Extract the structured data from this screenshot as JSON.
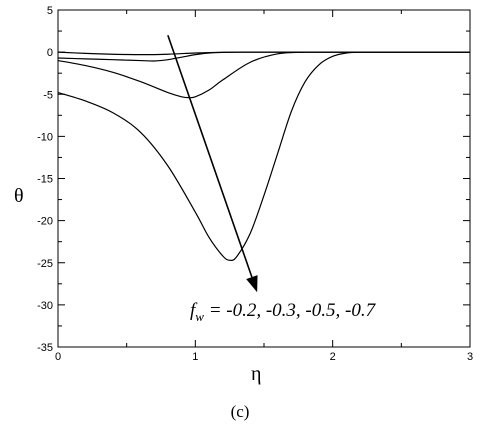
{
  "chart_data": {
    "type": "line",
    "title": "",
    "xlabel": "η",
    "ylabel": "θ",
    "xlim": [
      0,
      3
    ],
    "ylim": [
      -35,
      5
    ],
    "x_ticks": [
      0,
      1,
      2,
      3
    ],
    "y_ticks": [
      5,
      0,
      -5,
      -10,
      -15,
      -20,
      -25,
      -30,
      -35
    ],
    "grid": false,
    "annotation": {
      "text_prefix": "f",
      "text_sub": "w",
      "text_rest": " = -0.2, -0.3, -0.5, -0.7",
      "arrow_from": [
        0.8,
        2.0
      ],
      "arrow_to": [
        1.45,
        -28.5
      ]
    },
    "caption": "(c)",
    "series": [
      {
        "x": [
          0,
          0.2,
          0.4,
          0.6,
          0.8,
          1.0,
          1.2,
          1.4
        ],
        "values": [
          0,
          -0.15,
          -0.25,
          -0.3,
          -0.25,
          -0.1,
          -0.02,
          0
        ]
      },
      {
        "x": [
          0,
          0.2,
          0.4,
          0.6,
          0.7,
          0.8,
          0.9,
          1.0,
          1.1,
          1.2,
          1.4,
          1.6
        ],
        "values": [
          -0.7,
          -0.8,
          -0.9,
          -1.0,
          -1.05,
          -0.9,
          -0.6,
          -0.3,
          -0.1,
          -0.03,
          0,
          0
        ]
      },
      {
        "x": [
          0,
          0.2,
          0.4,
          0.6,
          0.8,
          0.9,
          0.95,
          1.0,
          1.1,
          1.2,
          1.4,
          1.6,
          1.8
        ],
        "values": [
          -1.0,
          -1.6,
          -2.4,
          -3.5,
          -4.8,
          -5.3,
          -5.4,
          -5.3,
          -4.5,
          -3.3,
          -1.2,
          -0.2,
          0
        ]
      },
      {
        "x": [
          0,
          0.2,
          0.4,
          0.6,
          0.8,
          1.0,
          1.1,
          1.2,
          1.25,
          1.3,
          1.4,
          1.5,
          1.6,
          1.7,
          1.8,
          1.9,
          2.0,
          2.1,
          2.2
        ],
        "values": [
          -4.8,
          -5.8,
          -7.2,
          -9.5,
          -13.5,
          -19.0,
          -22.0,
          -24.2,
          -24.7,
          -24.3,
          -21.5,
          -17.0,
          -12.0,
          -7.0,
          -3.5,
          -1.5,
          -0.5,
          -0.1,
          0
        ]
      }
    ]
  }
}
